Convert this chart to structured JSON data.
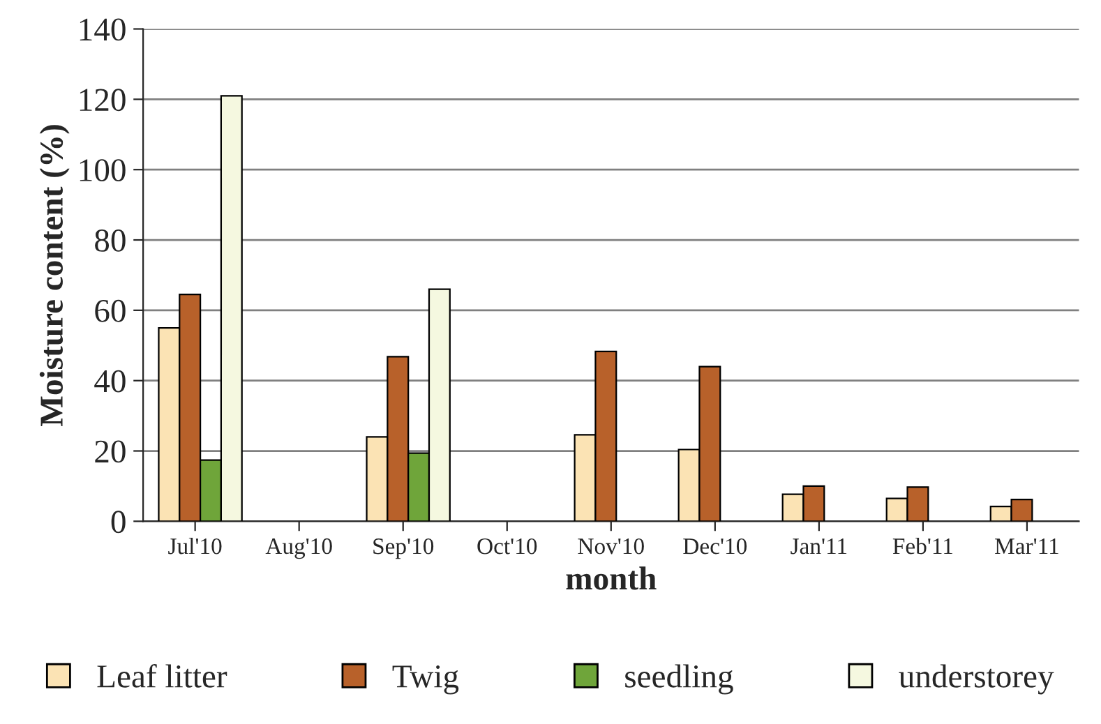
{
  "chart_data": {
    "type": "bar",
    "xlabel": "month",
    "ylabel": "Moisture content (%)",
    "categories": [
      "Jul'10",
      "Aug'10",
      "Sep'10",
      "Oct'10",
      "Nov'10",
      "Dec'10",
      "Jan'11",
      "Feb'11",
      "Mar'11"
    ],
    "series": [
      {
        "name": "Leaf litter",
        "color": "#fbe3b4",
        "values": [
          55,
          null,
          24,
          null,
          24.6,
          20.4,
          7.7,
          6.5,
          4.2
        ]
      },
      {
        "name": "Twig",
        "color": "#b8612a",
        "values": [
          64.5,
          null,
          46.8,
          null,
          48.3,
          44,
          10,
          9.7,
          6.2
        ]
      },
      {
        "name": "seedling",
        "color": "#6fa53a",
        "values": [
          17.4,
          null,
          19.4,
          null,
          null,
          null,
          null,
          null,
          null
        ]
      },
      {
        "name": "understorey",
        "color": "#f5f8e0",
        "values": [
          121,
          null,
          66,
          null,
          null,
          null,
          null,
          null,
          null
        ]
      }
    ],
    "ylim": [
      0,
      140
    ],
    "yticks": [
      0,
      20,
      40,
      60,
      80,
      100,
      120,
      140
    ],
    "grid": "y",
    "legend": "bottom"
  }
}
